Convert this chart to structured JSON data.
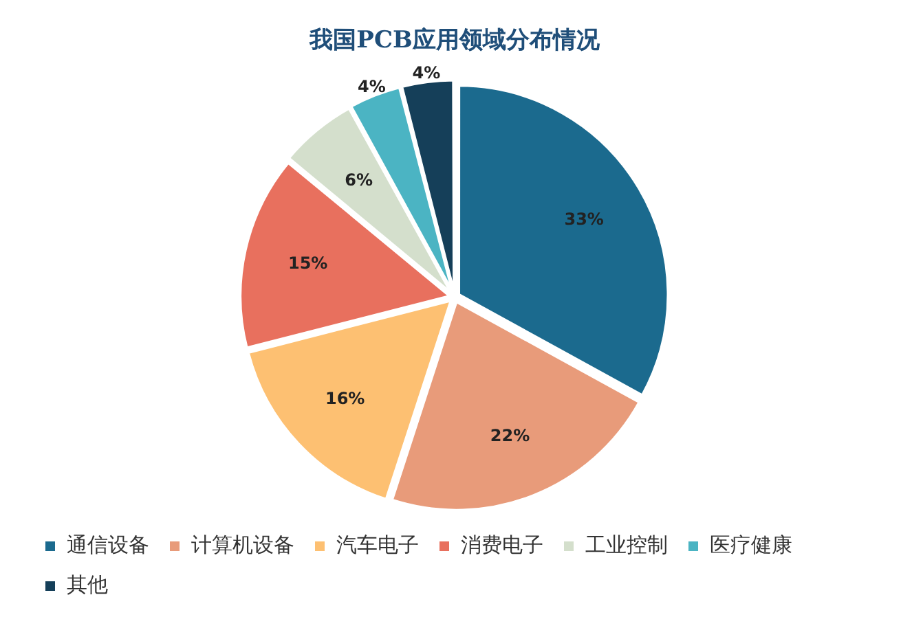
{
  "chart_data": {
    "type": "pie",
    "title": "我国PCB应用领域分布情况",
    "categories": [
      "通信设备",
      "计算机设备",
      "汽车电子",
      "消费电子",
      "工业控制",
      "医疗健康",
      "其他"
    ],
    "values": [
      33,
      22,
      16,
      15,
      6,
      4,
      4
    ],
    "colors": [
      "#1b6a8e",
      "#e89b7a",
      "#fdc072",
      "#e8705e",
      "#d4dfcc",
      "#4bb4c3",
      "#153f59"
    ],
    "value_labels": [
      "33%",
      "22%",
      "16%",
      "15%",
      "6%",
      "4%",
      "4%"
    ],
    "legend": "bottom"
  }
}
